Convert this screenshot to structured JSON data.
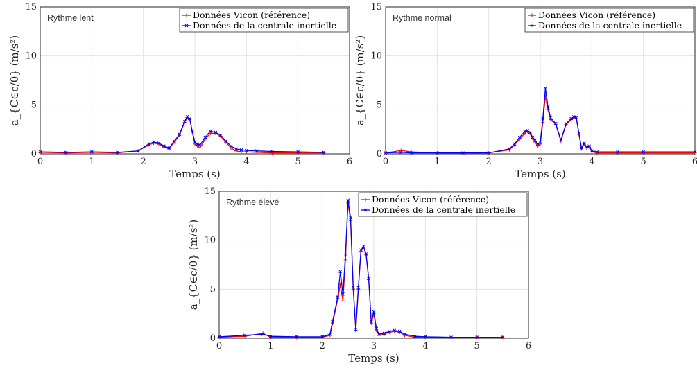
{
  "chart_data": [
    {
      "type": "line",
      "annotation": "Rythme lent",
      "xlabel": "Temps (s)",
      "ylabel": "a_{C∈c/0} (m/s²)",
      "xlim": [
        0,
        6
      ],
      "ylim": [
        0,
        15
      ],
      "xticks": [
        "0",
        "1",
        "2",
        "3",
        "4",
        "5",
        "6"
      ],
      "yticks": [
        "0",
        "5",
        "10",
        "15"
      ],
      "grid": true,
      "legend_position": "top-right",
      "series": [
        {
          "name": "Données Vicon (référence)",
          "color": "#ff0000",
          "marker": "+",
          "x": [
            0,
            0.5,
            1,
            1.5,
            1.9,
            2.1,
            2.2,
            2.3,
            2.4,
            2.5,
            2.6,
            2.7,
            2.8,
            2.85,
            2.9,
            2.95,
            3.0,
            3.05,
            3.1,
            3.2,
            3.3,
            3.4,
            3.5,
            3.6,
            3.7,
            3.8,
            3.9,
            4.0,
            4.2,
            4.5,
            5.0,
            5.5
          ],
          "y": [
            0.15,
            0.1,
            0.15,
            0.1,
            0.3,
            0.9,
            1.1,
            1.0,
            0.7,
            0.5,
            1.2,
            1.9,
            3.2,
            3.7,
            3.5,
            2.2,
            1.0,
            0.8,
            0.6,
            1.5,
            2.1,
            2.1,
            1.8,
            1.2,
            0.6,
            0.3,
            0.2,
            0.2,
            0.15,
            0.1,
            0.1,
            0.1
          ]
        },
        {
          "name": "Données de la centrale inertielle",
          "color": "#0000ff",
          "marker": "x",
          "x": [
            0,
            0.5,
            1,
            1.5,
            1.9,
            2.1,
            2.2,
            2.3,
            2.4,
            2.5,
            2.6,
            2.7,
            2.8,
            2.85,
            2.9,
            2.95,
            3.0,
            3.05,
            3.1,
            3.2,
            3.3,
            3.4,
            3.5,
            3.6,
            3.7,
            3.8,
            3.9,
            4.0,
            4.2,
            4.5,
            5.0,
            5.5
          ],
          "y": [
            0.2,
            0.15,
            0.2,
            0.15,
            0.3,
            1.0,
            1.2,
            1.1,
            0.8,
            0.6,
            1.3,
            2.0,
            3.3,
            3.8,
            3.6,
            2.3,
            1.2,
            1.0,
            0.9,
            1.7,
            2.3,
            2.2,
            1.9,
            1.3,
            0.8,
            0.5,
            0.4,
            0.35,
            0.3,
            0.25,
            0.2,
            0.15
          ]
        }
      ]
    },
    {
      "type": "line",
      "annotation": "Rythme normal",
      "xlabel": "Temps (s)",
      "ylabel": "a_{C∈c/0} (m/s²)",
      "xlim": [
        0,
        6
      ],
      "ylim": [
        0,
        15
      ],
      "xticks": [
        "0",
        "1",
        "2",
        "3",
        "4",
        "5",
        "6"
      ],
      "yticks": [
        "0",
        "5",
        "10",
        "15"
      ],
      "grid": true,
      "legend_position": "top-right",
      "series": [
        {
          "name": "Données Vicon (référence)",
          "color": "#ff0000",
          "marker": "+",
          "x": [
            0,
            0.3,
            0.5,
            1,
            1.5,
            2.0,
            2.4,
            2.5,
            2.6,
            2.7,
            2.75,
            2.8,
            2.85,
            2.9,
            2.95,
            3.0,
            3.05,
            3.1,
            3.15,
            3.2,
            3.3,
            3.4,
            3.5,
            3.6,
            3.65,
            3.7,
            3.75,
            3.8,
            3.85,
            3.9,
            3.95,
            4.0,
            4.1,
            4.5,
            5.0,
            6.0
          ],
          "y": [
            0.1,
            0.35,
            0.2,
            0.1,
            0.1,
            0.1,
            0.4,
            0.9,
            1.5,
            2.1,
            2.3,
            2.1,
            1.6,
            1.2,
            0.8,
            1.0,
            3.2,
            5.9,
            4.5,
            3.5,
            3.0,
            1.3,
            3.0,
            3.5,
            3.7,
            3.6,
            2.0,
            0.5,
            1.0,
            0.6,
            0.7,
            0.2,
            0.1,
            0.1,
            0.1,
            0.1
          ]
        },
        {
          "name": "Données de la centrale inertielle",
          "color": "#0000ff",
          "marker": "x",
          "x": [
            0,
            0.3,
            0.5,
            1,
            1.5,
            2.0,
            2.4,
            2.5,
            2.6,
            2.7,
            2.75,
            2.8,
            2.85,
            2.9,
            2.95,
            3.0,
            3.05,
            3.1,
            3.15,
            3.2,
            3.3,
            3.4,
            3.5,
            3.6,
            3.65,
            3.7,
            3.75,
            3.8,
            3.85,
            3.9,
            3.95,
            4.0,
            4.1,
            4.5,
            5.0,
            6.0
          ],
          "y": [
            0.1,
            0.15,
            0.1,
            0.1,
            0.1,
            0.1,
            0.5,
            1.0,
            1.7,
            2.3,
            2.4,
            2.2,
            1.7,
            1.4,
            1.0,
            1.2,
            3.6,
            6.7,
            4.8,
            3.7,
            3.1,
            1.4,
            3.1,
            3.6,
            3.8,
            3.7,
            2.1,
            0.6,
            1.1,
            0.7,
            0.8,
            0.3,
            0.2,
            0.2,
            0.2,
            0.2
          ]
        }
      ]
    },
    {
      "type": "line",
      "annotation": "Rythme élevé",
      "xlabel": "Temps (s)",
      "ylabel": "a_{C∈c/0} (m/s²)",
      "xlim": [
        0,
        6
      ],
      "ylim": [
        0,
        15
      ],
      "xticks": [
        "0",
        "1",
        "2",
        "3",
        "4",
        "5",
        "6"
      ],
      "yticks": [
        "0",
        "5",
        "10",
        "15"
      ],
      "grid": true,
      "legend_position": "top-right",
      "series": [
        {
          "name": "Données Vicon (référence)",
          "color": "#ff0000",
          "marker": "+",
          "x": [
            0,
            0.5,
            0.85,
            1.0,
            1.5,
            2.0,
            2.15,
            2.2,
            2.3,
            2.35,
            2.4,
            2.45,
            2.5,
            2.55,
            2.6,
            2.65,
            2.7,
            2.75,
            2.8,
            2.85,
            2.9,
            2.95,
            3.0,
            3.05,
            3.1,
            3.2,
            3.3,
            3.4,
            3.5,
            3.6,
            3.8,
            4.0,
            4.5,
            5.0,
            5.5
          ],
          "y": [
            0.1,
            0.2,
            0.5,
            0.1,
            0.1,
            0.1,
            0.3,
            1.5,
            4.0,
            5.5,
            3.8,
            8.0,
            13.8,
            12.0,
            5.0,
            0.8,
            5.0,
            8.8,
            9.3,
            8.5,
            6.0,
            1.5,
            2.5,
            0.8,
            0.3,
            0.4,
            0.6,
            0.7,
            0.6,
            0.3,
            0.1,
            0.1,
            0.1,
            0.1,
            0.1
          ]
        },
        {
          "name": "Données de la centrale inertielle",
          "color": "#0000ff",
          "marker": "x",
          "x": [
            0,
            0.5,
            0.85,
            1.0,
            1.5,
            2.0,
            2.15,
            2.2,
            2.3,
            2.35,
            2.4,
            2.45,
            2.5,
            2.55,
            2.6,
            2.65,
            2.7,
            2.75,
            2.8,
            2.85,
            2.9,
            2.95,
            3.0,
            3.05,
            3.1,
            3.2,
            3.3,
            3.4,
            3.5,
            3.6,
            3.8,
            4.0,
            4.5,
            5.0,
            5.5
          ],
          "y": [
            0.15,
            0.3,
            0.4,
            0.2,
            0.15,
            0.15,
            0.4,
            1.7,
            4.2,
            6.8,
            4.5,
            8.5,
            14.1,
            12.3,
            5.2,
            0.9,
            5.2,
            9.0,
            9.4,
            8.6,
            6.1,
            1.7,
            2.7,
            1.0,
            0.4,
            0.5,
            0.7,
            0.8,
            0.7,
            0.4,
            0.2,
            0.15,
            0.1,
            0.1,
            0.1
          ]
        }
      ]
    }
  ]
}
